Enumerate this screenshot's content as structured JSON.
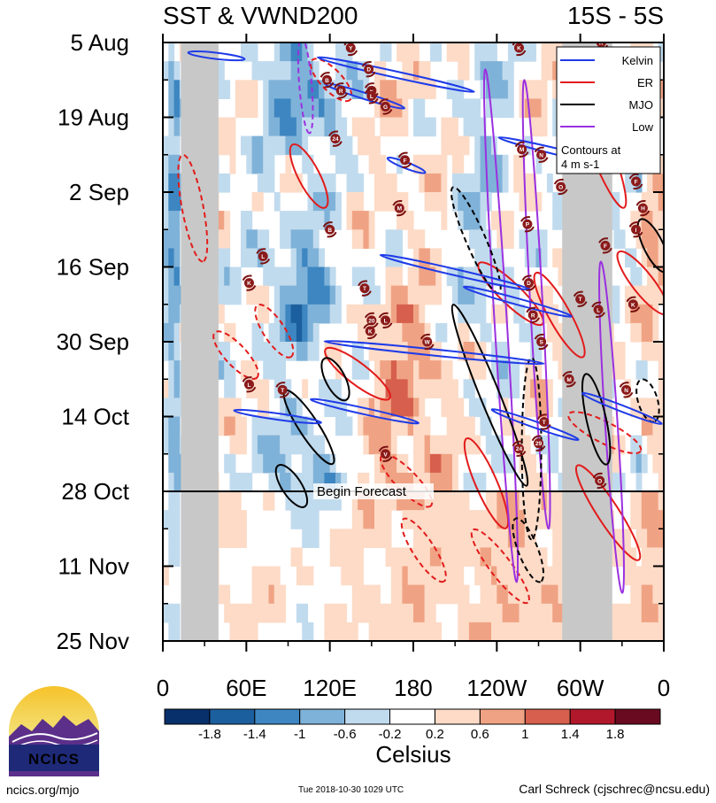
{
  "chart_data": {
    "type": "heatmap",
    "title_left": "SST & VWND200",
    "title_right": "15S - 5S",
    "x_ticks": [
      "0",
      "60E",
      "120E",
      "180",
      "120W",
      "60W",
      "0"
    ],
    "x_tick_lon": [
      0,
      60,
      120,
      180,
      240,
      300,
      360
    ],
    "y_ticks": [
      "5 Aug",
      "19 Aug",
      "2 Sep",
      "16 Sep",
      "30 Sep",
      "14 Oct",
      "28 Oct",
      "11 Nov",
      "25 Nov"
    ],
    "y_tick_day": [
      0,
      14,
      28,
      42,
      56,
      70,
      84,
      98,
      112
    ],
    "xlim": [
      0,
      360
    ],
    "ylim_days": [
      0,
      112
    ],
    "forecast_day": 84,
    "forecast_label": "Begin Forecast",
    "colorbar": {
      "unit_label": "Celsius",
      "tick_labels": [
        "-1.8",
        "-1.4",
        "-1",
        "-0.6",
        "-0.2",
        "0.2",
        "0.6",
        "1",
        "1.4",
        "1.8"
      ],
      "colors": [
        "#08306b",
        "#1c5f9e",
        "#3d86c1",
        "#7fb2d8",
        "#c1dbee",
        "#ffffff",
        "#fddbc7",
        "#f0a384",
        "#d6604d",
        "#b2182b",
        "#6a0a20"
      ]
    },
    "land_bands_lon": [
      [
        13,
        40
      ],
      [
        287,
        323
      ]
    ],
    "legend": {
      "items": [
        {
          "label": "Kelvin",
          "color": "#1f3be8"
        },
        {
          "label": "ER",
          "color": "#e31b1b"
        },
        {
          "label": "MJO",
          "color": "#000000"
        },
        {
          "label": "Low",
          "color": "#9b30e0"
        }
      ],
      "note_line1": "Contours at",
      "note_line2": "4 m s-1"
    },
    "kelvin_waves": [
      [
        22,
        2,
        55,
        3
      ],
      [
        115,
        3,
        220,
        9
      ],
      [
        120,
        8,
        170,
        12
      ],
      [
        165,
        22,
        185,
        24
      ],
      [
        245,
        18,
        340,
        24
      ],
      [
        160,
        40,
        260,
        46
      ],
      [
        220,
        46,
        290,
        51
      ],
      [
        120,
        56,
        270,
        60
      ],
      [
        55,
        69,
        110,
        71
      ],
      [
        110,
        67,
        180,
        71
      ],
      [
        240,
        69,
        295,
        74
      ],
      [
        305,
        66,
        355,
        71
      ]
    ],
    "mjo_events": [
      [
        210,
        50,
        260,
        82,
        1
      ],
      [
        265,
        60,
        265,
        92,
        2
      ],
      [
        118,
        60,
        130,
        66,
        1
      ],
      [
        90,
        66,
        120,
        78,
        1
      ],
      [
        85,
        80,
        100,
        86,
        1
      ],
      [
        305,
        63,
        318,
        78,
        1
      ],
      [
        345,
        34,
        360,
        42,
        1
      ],
      [
        210,
        28,
        240,
        46,
        2
      ],
      [
        255,
        90,
        270,
        100,
        2
      ],
      [
        345,
        64,
        352,
        70,
        2
      ]
    ],
    "er_events": [
      [
        110,
        4,
        132,
        10,
        2
      ],
      [
        230,
        42,
        270,
        52,
        1
      ],
      [
        300,
        10,
        330,
        30,
        1
      ],
      [
        95,
        20,
        115,
        30,
        1
      ],
      [
        70,
        50,
        90,
        58,
        2
      ],
      [
        120,
        58,
        160,
        66,
        1
      ],
      [
        220,
        75,
        245,
        90,
        1
      ],
      [
        160,
        78,
        190,
        86,
        2
      ],
      [
        330,
        40,
        360,
        50,
        1
      ],
      [
        15,
        22,
        28,
        40,
        2
      ],
      [
        295,
        70,
        340,
        76,
        2
      ],
      [
        270,
        44,
        300,
        58,
        1
      ],
      [
        40,
        55,
        65,
        62,
        2
      ],
      [
        175,
        90,
        200,
        100,
        2
      ],
      [
        225,
        92,
        260,
        104,
        2
      ],
      [
        300,
        80,
        340,
        96,
        1
      ]
    ],
    "low_events": [
      [
        232,
        6,
        254,
        100,
        1
      ],
      [
        260,
        8,
        277,
        90,
        1
      ],
      [
        315,
        42,
        330,
        102,
        1
      ],
      [
        100,
        0,
        105,
        16,
        2
      ]
    ],
    "storm_symbols": [
      {
        "code": "Y",
        "lon": 135,
        "day": 1
      },
      {
        "code": "K",
        "lon": 256,
        "day": 1
      },
      {
        "code": "K",
        "lon": 315,
        "day": 0
      },
      {
        "code": "B",
        "lon": 118,
        "day": 7
      },
      {
        "code": "D",
        "lon": 148,
        "day": 5
      },
      {
        "code": "S",
        "lon": 150,
        "day": 9
      },
      {
        "code": "R",
        "lon": 128,
        "day": 9
      },
      {
        "code": "L",
        "lon": 150,
        "day": 10
      },
      {
        "code": "G",
        "lon": 160,
        "day": 12
      },
      {
        "code": "24",
        "lon": 124,
        "day": 18
      },
      {
        "code": "M",
        "lon": 258,
        "day": 20
      },
      {
        "code": "N",
        "lon": 272,
        "day": 21
      },
      {
        "code": "O",
        "lon": 286,
        "day": 27
      },
      {
        "code": "F",
        "lon": 174,
        "day": 22
      },
      {
        "code": "H",
        "lon": 345,
        "day": 31
      },
      {
        "code": "M",
        "lon": 170,
        "day": 31
      },
      {
        "code": "P",
        "lon": 262,
        "day": 34
      },
      {
        "code": "B",
        "lon": 120,
        "day": 35
      },
      {
        "code": "I",
        "lon": 340,
        "day": 35
      },
      {
        "code": "F",
        "lon": 340,
        "day": 26
      },
      {
        "code": "L",
        "lon": 72,
        "day": 40
      },
      {
        "code": "F",
        "lon": 318,
        "day": 38
      },
      {
        "code": "K",
        "lon": 62,
        "day": 45
      },
      {
        "code": "T",
        "lon": 145,
        "day": 46
      },
      {
        "code": "T",
        "lon": 300,
        "day": 48
      },
      {
        "code": "D",
        "lon": 263,
        "day": 45
      },
      {
        "code": "L",
        "lon": 313,
        "day": 50
      },
      {
        "code": "K",
        "lon": 338,
        "day": 49
      },
      {
        "code": "20",
        "lon": 150,
        "day": 52
      },
      {
        "code": "L",
        "lon": 160,
        "day": 52
      },
      {
        "code": "K",
        "lon": 149,
        "day": 54
      },
      {
        "code": "R",
        "lon": 266,
        "day": 51
      },
      {
        "code": "W",
        "lon": 190,
        "day": 56
      },
      {
        "code": "S",
        "lon": 272,
        "day": 56
      },
      {
        "code": "M",
        "lon": 292,
        "day": 63
      },
      {
        "code": "L",
        "lon": 62,
        "day": 64
      },
      {
        "code": "T",
        "lon": 86,
        "day": 65
      },
      {
        "code": "N",
        "lon": 333,
        "day": 65
      },
      {
        "code": "T",
        "lon": 274,
        "day": 71
      },
      {
        "code": "24",
        "lon": 256,
        "day": 76
      },
      {
        "code": "29",
        "lon": 270,
        "day": 75
      },
      {
        "code": "V",
        "lon": 160,
        "day": 77
      },
      {
        "code": "O",
        "lon": 314,
        "day": 82
      }
    ]
  },
  "footer": {
    "logo_text": "NCICS",
    "site": "ncics.org/mjo",
    "timestamp": "Tue 2018-10-30 1029 UTC",
    "credit": "Carl Schreck (cjschrec@ncsu.edu)"
  }
}
